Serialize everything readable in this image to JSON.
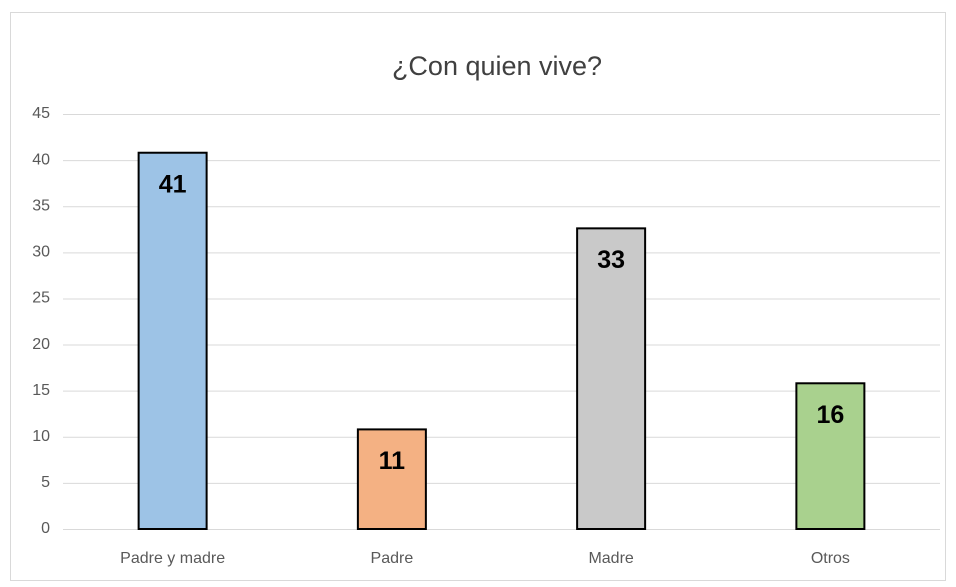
{
  "chart_data": {
    "type": "bar",
    "title": "¿Con quien vive?",
    "categories": [
      "Padre y madre",
      "Padre",
      "Madre",
      "Otros"
    ],
    "values": [
      40.8,
      10.8,
      32.6,
      15.8
    ],
    "value_labels": [
      "41",
      "11",
      "33",
      "16"
    ],
    "colors": [
      "#9dc3e6",
      "#f4b183",
      "#c9c9c9",
      "#a9d18e"
    ],
    "ylim": [
      0,
      45
    ],
    "yticks": [
      0,
      5,
      10,
      15,
      20,
      25,
      30,
      35,
      40,
      45
    ],
    "grid": true
  }
}
